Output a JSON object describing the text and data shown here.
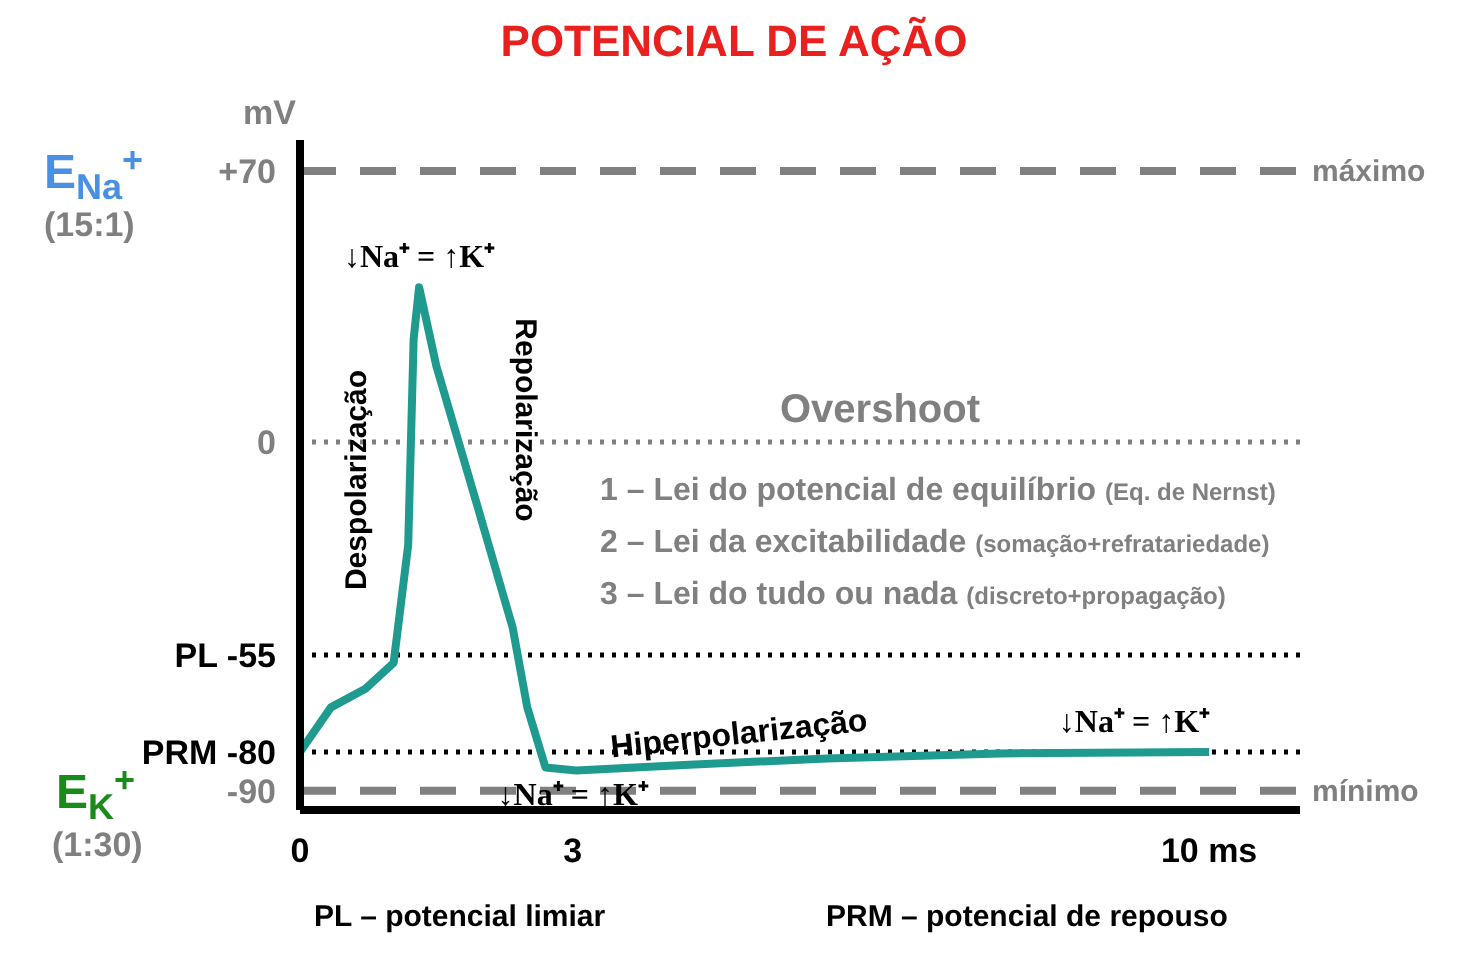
{
  "chart_data": {
    "type": "line",
    "title": "POTENCIAL DE AÇÃO",
    "ylabel": "mV",
    "x": [
      0,
      0.34,
      0.72,
      1.03,
      1.19,
      1.25,
      1.31,
      1.5,
      1.97,
      2.34,
      2.5,
      2.7,
      3.04,
      4.28,
      5.8,
      7.7,
      10
    ],
    "series": [
      {
        "color": "#1f9a8e",
        "values": [
          -80,
          -68.5,
          -63.7,
          -57,
          -26.6,
          26.6,
          40,
          19.6,
          -18,
          -48,
          -68.5,
          -84,
          -84.8,
          -83.3,
          -81.7,
          -80.4,
          -80
        ]
      }
    ],
    "xlim": [
      0,
      11
    ],
    "xticks": [
      0,
      3,
      {
        "value": 10,
        "label": "10 ms"
      }
    ],
    "ylim": [
      -95,
      78
    ],
    "yticks": [
      {
        "value": 70,
        "label": "+70"
      },
      0,
      {
        "value": -55,
        "label": "PL -55"
      },
      {
        "value": -80,
        "label": "PRM -80"
      },
      -90
    ],
    "ref_lines": [
      {
        "axis": "y",
        "value": 70,
        "label": "máximo",
        "color": "#808080",
        "line_style": "dashed"
      },
      {
        "axis": "y",
        "value": 0,
        "label": "Overshoot",
        "color": "#808080",
        "line_style": "dotted"
      },
      {
        "axis": "y",
        "value": -55,
        "color": "#000000",
        "line_style": "dotted"
      },
      {
        "axis": "y",
        "value": -80,
        "color": "#000000",
        "line_style": "dotted"
      },
      {
        "axis": "y",
        "value": -90,
        "label": "mínimo",
        "color": "#808080",
        "line_style": "dashed"
      }
    ],
    "annotations": [
      "E$_{Na}$$^{+}$",
      "(15:1)",
      "E$_{K}$$^{+}$",
      "(1:30)",
      {
        "text": "↓Na⁺ = ↑K⁺",
        "x": 1.31,
        "y": 40
      },
      "Despolarização",
      "Repolarização",
      "1 – Lei do potencial de equilíbrio (Eq. de Nernst)",
      "2 – Lei da excitabilidade (somação+refratariedade)",
      "3 – Lei do tudo ou nada (discreto+propagação)",
      "Hiperpolarização",
      {
        "text": "↓Na⁺ = ↑K⁺",
        "x": 3,
        "y": -85
      },
      {
        "text": "↓Na⁺ = ↑K⁺",
        "x": 10,
        "y": -80
      },
      "PL – potencial limiar",
      "PRM – potencial de repouso"
    ]
  }
}
